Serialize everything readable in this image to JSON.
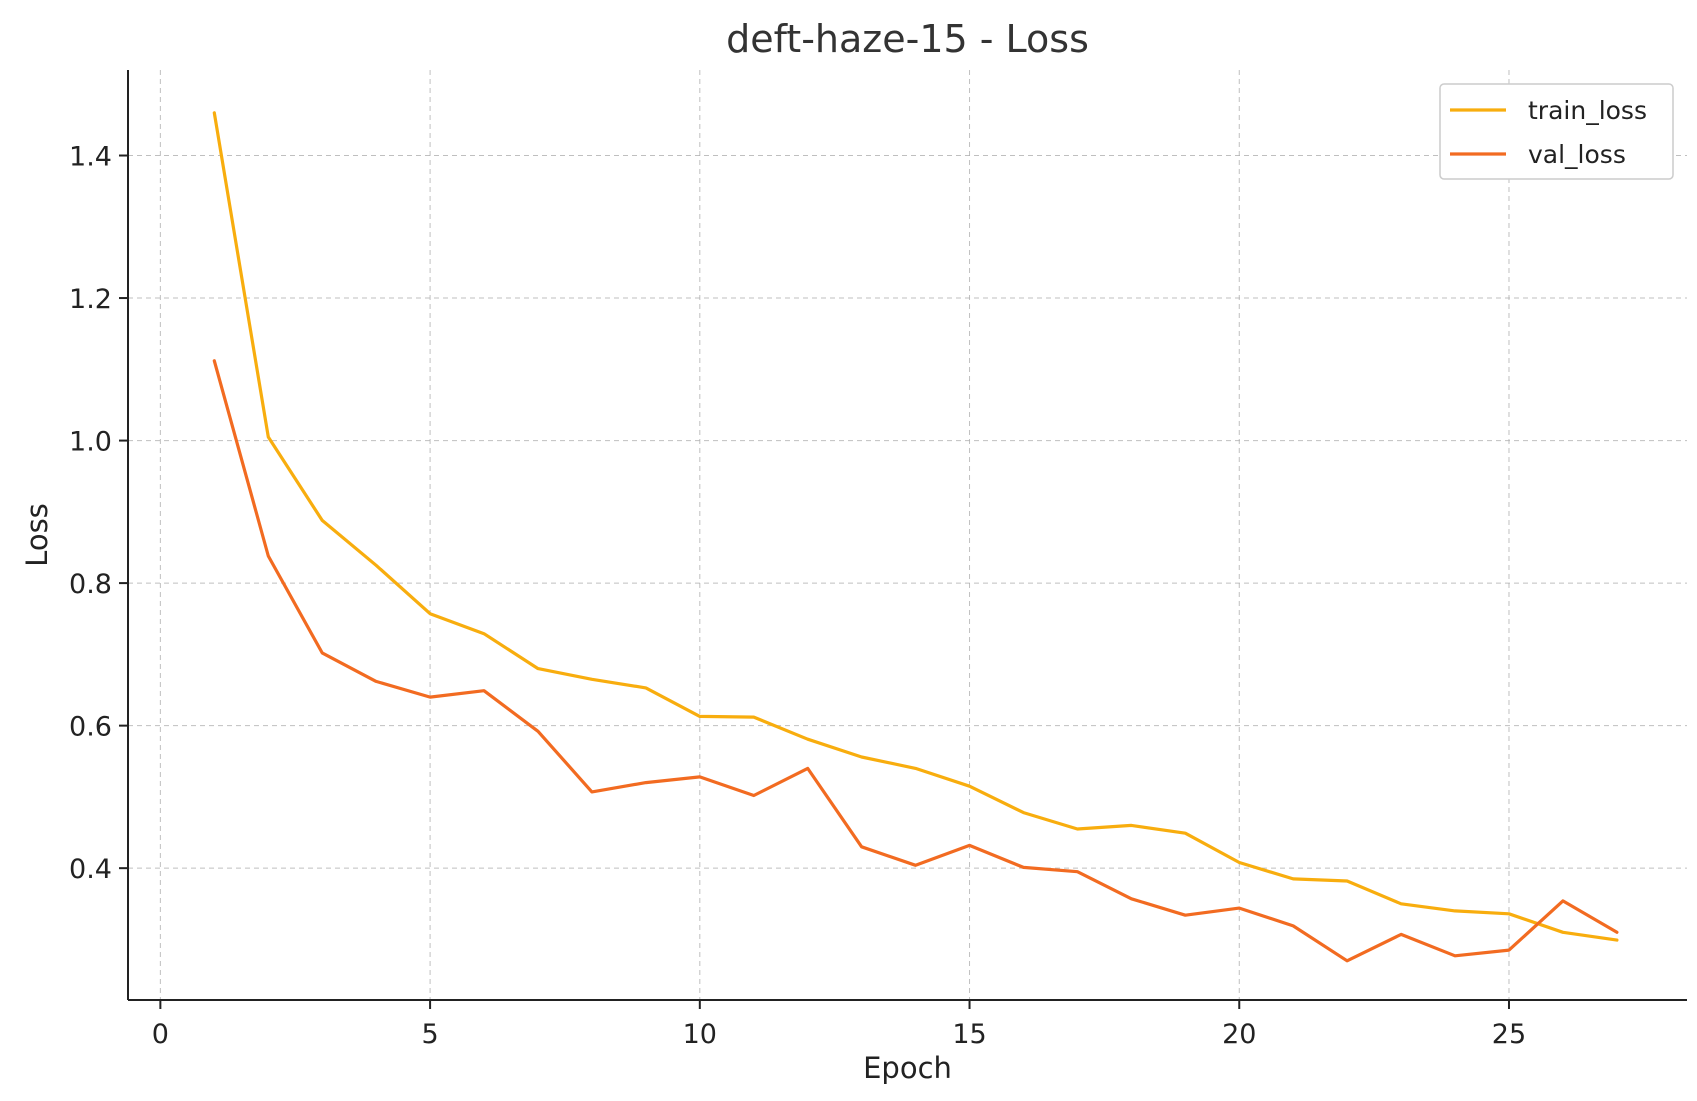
{
  "chart_data": {
    "type": "line",
    "title": "deft-haze-15 - Loss",
    "xlabel": "Epoch",
    "ylabel": "Loss",
    "xlim": [
      -0.6,
      28.3
    ],
    "ylim": [
      0.215,
      1.52
    ],
    "xticks": [
      0,
      5,
      10,
      15,
      20,
      25
    ],
    "yticks": [
      0.4,
      0.6,
      0.8,
      1.0,
      1.2,
      1.4
    ],
    "grid": true,
    "legend_position": "top-right",
    "x": [
      1,
      2,
      3,
      4,
      5,
      6,
      7,
      8,
      9,
      10,
      11,
      12,
      13,
      14,
      15,
      16,
      17,
      18,
      19,
      20,
      21,
      22,
      23,
      24,
      25,
      26,
      27
    ],
    "series": [
      {
        "name": "train_loss",
        "color": "#f8ad0e",
        "values": [
          1.46,
          1.005,
          0.888,
          0.825,
          0.757,
          0.729,
          0.68,
          0.665,
          0.653,
          0.613,
          0.612,
          0.581,
          0.556,
          0.54,
          0.515,
          0.478,
          0.455,
          0.46,
          0.449,
          0.408,
          0.385,
          0.382,
          0.35,
          0.34,
          0.336,
          0.31,
          0.299
        ]
      },
      {
        "name": "val_loss",
        "color": "#f26b21",
        "values": [
          1.112,
          0.838,
          0.702,
          0.662,
          0.64,
          0.649,
          0.592,
          0.507,
          0.52,
          0.528,
          0.502,
          0.54,
          0.43,
          0.404,
          0.432,
          0.401,
          0.395,
          0.357,
          0.334,
          0.344,
          0.319,
          0.27,
          0.307,
          0.277,
          0.285,
          0.354,
          0.31
        ]
      }
    ]
  }
}
